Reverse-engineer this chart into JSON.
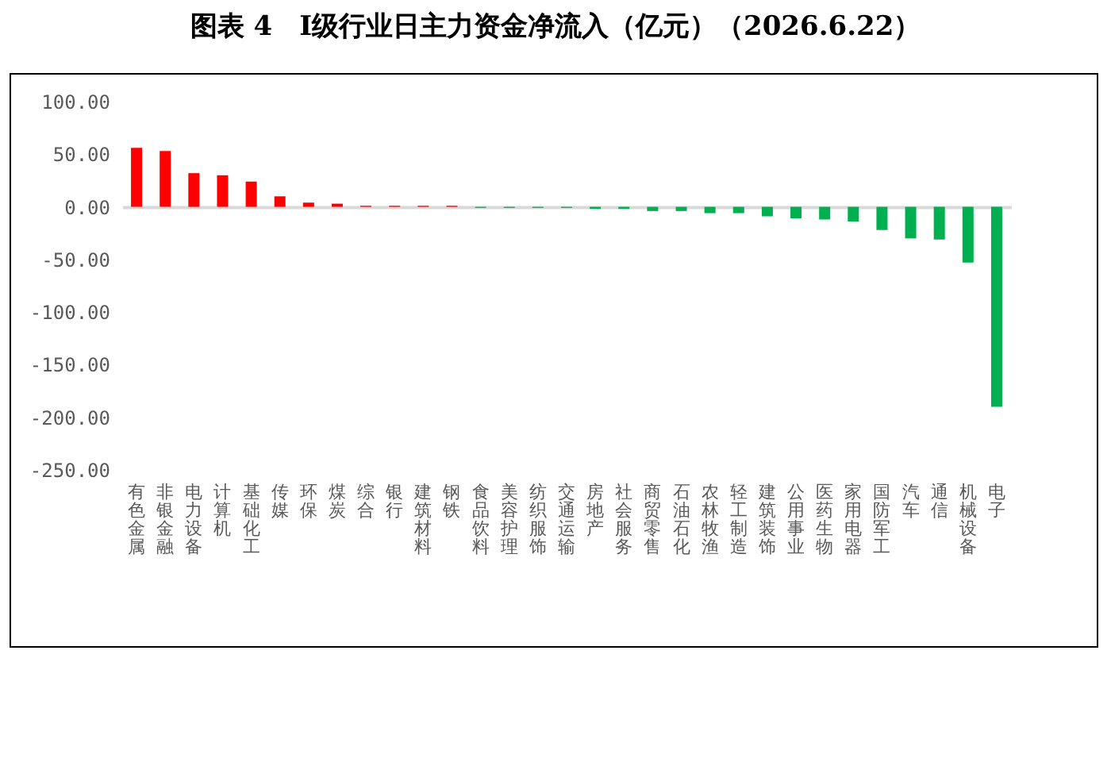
{
  "chart_data": {
    "type": "bar",
    "title": "图表 4　Ⅰ级行业日主力资金净流入（亿元）（2026.6.22）",
    "categories": [
      "有色金属",
      "非银金融",
      "电力设备",
      "计算机",
      "基础化工",
      "传媒",
      "环保",
      "煤炭",
      "综合",
      "银行",
      "建筑材料",
      "钢铁",
      "食品饮料",
      "美容护理",
      "纺织服饰",
      "交通运输",
      "房地产",
      "社会服务",
      "商贸零售",
      "石油石化",
      "农林牧渔",
      "轻工制造",
      "建筑装饰",
      "公用事业",
      "医药生物",
      "家用电器",
      "国防军工",
      "汽车",
      "通信",
      "机械设备",
      "电子"
    ],
    "values": [
      56,
      53,
      32,
      30,
      24,
      10,
      4,
      3,
      1,
      1,
      1,
      1,
      -1,
      -1,
      -1,
      -1,
      -2,
      -2,
      -4,
      -4,
      -6,
      -6,
      -9,
      -11,
      -12,
      -14,
      -22,
      -30,
      -31,
      -53,
      -190
    ],
    "colors": [
      "#ff0000",
      "#ff0000",
      "#ff0000",
      "#ff0000",
      "#ff0000",
      "#ff0000",
      "#ff0000",
      "#ff0000",
      "#ff0000",
      "#ff0000",
      "#ff0000",
      "#ff0000",
      "#00b050",
      "#00b050",
      "#00b050",
      "#00b050",
      "#00b050",
      "#00b050",
      "#00b050",
      "#00b050",
      "#00b050",
      "#00b050",
      "#00b050",
      "#00b050",
      "#00b050",
      "#00b050",
      "#00b050",
      "#00b050",
      "#00b050",
      "#00b050",
      "#00b050"
    ],
    "ylim": [
      -250,
      100
    ],
    "yticks": [
      {
        "value": 100,
        "label": "100.00"
      },
      {
        "value": 50,
        "label": "50.00"
      },
      {
        "value": 0,
        "label": "0.00"
      },
      {
        "value": -50,
        "label": "-50.00"
      },
      {
        "value": -100,
        "label": "-100.00"
      },
      {
        "value": -150,
        "label": "-150.00"
      },
      {
        "value": -200,
        "label": "-200.00"
      },
      {
        "value": -250,
        "label": "-250.00"
      }
    ]
  }
}
